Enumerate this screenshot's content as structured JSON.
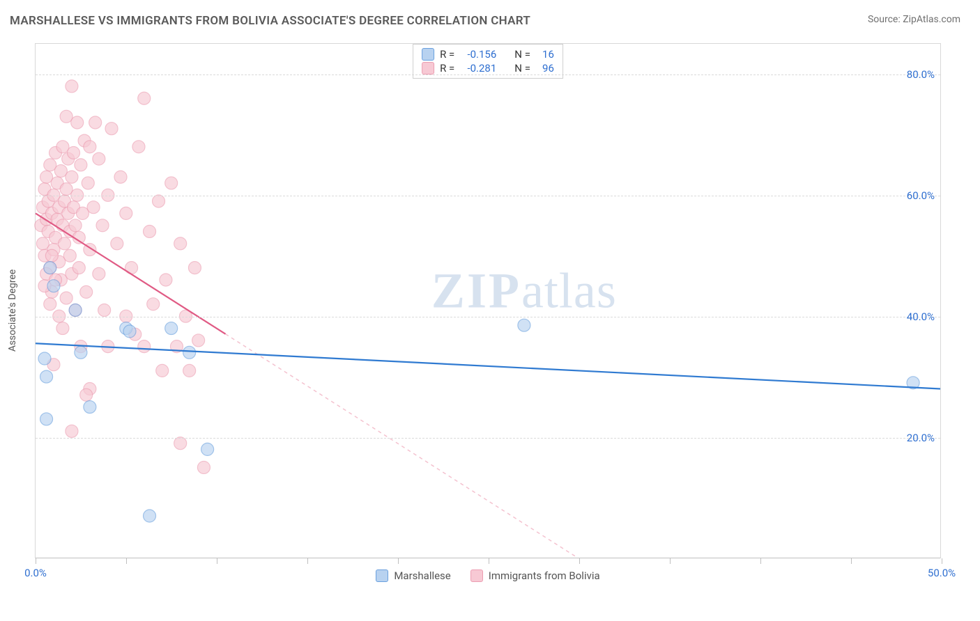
{
  "title": "MARSHALLESE VS IMMIGRANTS FROM BOLIVIA ASSOCIATE'S DEGREE CORRELATION CHART",
  "source": "Source: ZipAtlas.com",
  "ylabel": "Associate's Degree",
  "watermark_zip": "ZIP",
  "watermark_atlas": "atlas",
  "colors": {
    "blue_fill": "#b8d2f0",
    "blue_stroke": "#6aa0de",
    "blue_line": "#2f7ad1",
    "pink_fill": "#f7c9d4",
    "pink_stroke": "#ec9db1",
    "pink_line": "#e05a84",
    "pink_dash": "#f4c2cf",
    "axis_text": "#2f6fd0",
    "grid": "#dadada"
  },
  "xlim": [
    0,
    50
  ],
  "ylim": [
    0,
    85
  ],
  "y_gridlines": [
    20,
    40,
    60,
    80
  ],
  "y_tick_labels": [
    "20.0%",
    "40.0%",
    "60.0%",
    "80.0%"
  ],
  "x_ticks": [
    0,
    5,
    10,
    15,
    20,
    25,
    30,
    35,
    40,
    45,
    50
  ],
  "x_min_label": "0.0%",
  "x_max_label": "50.0%",
  "stats": [
    {
      "swatch_fill": "#b8d2f0",
      "swatch_stroke": "#6aa0de",
      "r_label": "R =",
      "r_val": "-0.156",
      "n_label": "N =",
      "n_val": "16"
    },
    {
      "swatch_fill": "#f7c9d4",
      "swatch_stroke": "#ec9db1",
      "r_label": "R =",
      "r_val": "-0.281",
      "n_label": "N =",
      "n_val": "96"
    }
  ],
  "legend": [
    {
      "swatch_fill": "#b8d2f0",
      "swatch_stroke": "#6aa0de",
      "label": "Marshallese"
    },
    {
      "swatch_fill": "#f7c9d4",
      "swatch_stroke": "#ec9db1",
      "label": "Immigrants from Bolivia"
    }
  ],
  "marker_radius": 9,
  "marker_opacity": 0.65,
  "line_width": 2.2,
  "trend_lines": {
    "blue": {
      "x1": 0,
      "y1": 35.5,
      "x2": 50,
      "y2": 28.0,
      "solid_until_x": 50
    },
    "pink": {
      "x1": 0,
      "y1": 57.0,
      "x2": 30,
      "y2": 0,
      "solid_until_x": 10.5
    }
  },
  "series_blue": [
    [
      0.8,
      48
    ],
    [
      0.5,
      33
    ],
    [
      0.6,
      30
    ],
    [
      0.6,
      23
    ],
    [
      1.0,
      45
    ],
    [
      2.2,
      41
    ],
    [
      3.0,
      25
    ],
    [
      5.0,
      38
    ],
    [
      5.2,
      37.5
    ],
    [
      7.5,
      38
    ],
    [
      8.5,
      34
    ],
    [
      9.5,
      18
    ],
    [
      6.3,
      7
    ],
    [
      27,
      38.5
    ],
    [
      48.5,
      29
    ],
    [
      2.5,
      34
    ]
  ],
  "series_pink": [
    [
      0.3,
      55
    ],
    [
      0.4,
      58
    ],
    [
      0.4,
      52
    ],
    [
      0.5,
      50
    ],
    [
      0.5,
      61
    ],
    [
      0.6,
      56
    ],
    [
      0.6,
      63
    ],
    [
      0.7,
      54
    ],
    [
      0.7,
      59
    ],
    [
      0.8,
      48
    ],
    [
      0.8,
      65
    ],
    [
      0.9,
      57
    ],
    [
      0.9,
      44
    ],
    [
      1.0,
      60
    ],
    [
      1.0,
      51
    ],
    [
      1.1,
      67
    ],
    [
      1.1,
      53
    ],
    [
      1.2,
      56
    ],
    [
      1.2,
      62
    ],
    [
      1.3,
      49
    ],
    [
      1.3,
      58
    ],
    [
      1.4,
      64
    ],
    [
      1.4,
      46
    ],
    [
      1.5,
      55
    ],
    [
      1.5,
      68
    ],
    [
      1.6,
      52
    ],
    [
      1.6,
      59
    ],
    [
      1.7,
      61
    ],
    [
      1.7,
      43
    ],
    [
      1.8,
      57
    ],
    [
      1.8,
      66
    ],
    [
      1.9,
      50
    ],
    [
      1.9,
      54
    ],
    [
      2.0,
      63
    ],
    [
      2.0,
      47
    ],
    [
      2.0,
      78
    ],
    [
      2.1,
      58
    ],
    [
      2.1,
      67
    ],
    [
      2.2,
      55
    ],
    [
      2.2,
      41
    ],
    [
      2.3,
      60
    ],
    [
      2.3,
      72
    ],
    [
      2.4,
      53
    ],
    [
      2.4,
      48
    ],
    [
      2.5,
      65
    ],
    [
      2.5,
      35
    ],
    [
      2.6,
      57
    ],
    [
      2.7,
      69
    ],
    [
      2.8,
      44
    ],
    [
      2.9,
      62
    ],
    [
      3.0,
      51
    ],
    [
      3.0,
      28
    ],
    [
      3.2,
      58
    ],
    [
      3.3,
      72
    ],
    [
      3.5,
      47
    ],
    [
      3.5,
      66
    ],
    [
      3.7,
      55
    ],
    [
      3.8,
      41
    ],
    [
      4.0,
      60
    ],
    [
      4.0,
      35
    ],
    [
      4.2,
      71
    ],
    [
      4.5,
      52
    ],
    [
      4.7,
      63
    ],
    [
      5.0,
      40
    ],
    [
      5.0,
      57
    ],
    [
      5.3,
      48
    ],
    [
      5.5,
      37
    ],
    [
      5.7,
      68
    ],
    [
      6.0,
      76
    ],
    [
      6.0,
      35
    ],
    [
      6.3,
      54
    ],
    [
      6.5,
      42
    ],
    [
      6.8,
      59
    ],
    [
      7.0,
      31
    ],
    [
      7.2,
      46
    ],
    [
      7.5,
      62
    ],
    [
      7.8,
      35
    ],
    [
      8.0,
      52
    ],
    [
      8.0,
      19
    ],
    [
      8.3,
      40
    ],
    [
      8.5,
      31
    ],
    [
      8.8,
      48
    ],
    [
      9.0,
      36
    ],
    [
      9.3,
      15
    ],
    [
      2.0,
      21
    ],
    [
      1.0,
      32
    ],
    [
      1.3,
      40
    ],
    [
      3.0,
      68
    ],
    [
      1.7,
      73
    ],
    [
      0.5,
      45
    ],
    [
      0.8,
      42
    ],
    [
      1.5,
      38
    ],
    [
      2.8,
      27
    ],
    [
      0.6,
      47
    ],
    [
      1.1,
      46
    ],
    [
      0.9,
      50
    ]
  ]
}
